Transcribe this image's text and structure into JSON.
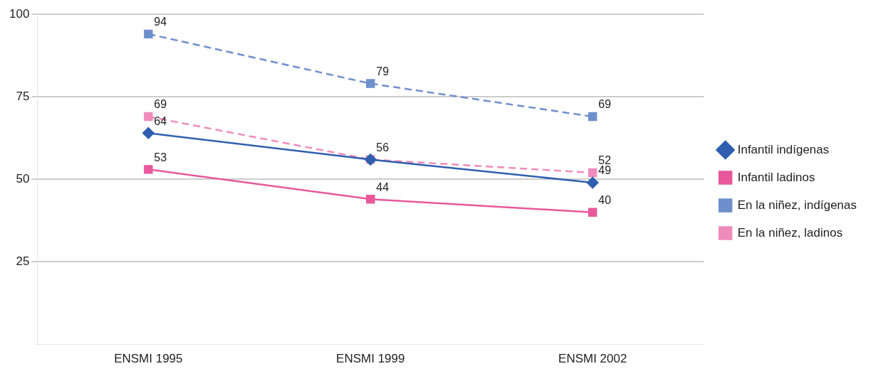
{
  "chart_data": {
    "type": "line",
    "categories": [
      "ENSMI 1995",
      "ENSMI 1999",
      "ENSMI 2002"
    ],
    "ylim": [
      0,
      100
    ],
    "yticks": [
      25,
      50,
      75,
      100
    ],
    "grid": "y",
    "legend": "right",
    "series": [
      {
        "name": "Infantil indígenas",
        "color": "#2f5fae",
        "values": [
          64,
          56,
          49
        ],
        "marker": "diamond",
        "line_style": "solid",
        "value_labels": [
          "64",
          null,
          "49"
        ]
      },
      {
        "name": "Infantil ladinos",
        "color": "#e8589b",
        "values": [
          53,
          44,
          40
        ],
        "marker": "square",
        "line_style": "solid",
        "value_labels": [
          "53",
          "44",
          "40"
        ]
      },
      {
        "name": "En la niñez, indígenas",
        "color": "#6f8fcc",
        "values": [
          94,
          79,
          69
        ],
        "marker": "square",
        "line_style": "dashed",
        "value_labels": [
          "94",
          "79",
          "69"
        ]
      },
      {
        "name": "En la niñez, ladinos",
        "color": "#f08cbb",
        "values": [
          69,
          56,
          52
        ],
        "marker": "square",
        "line_style": "dashed",
        "value_labels": [
          "69",
          "56",
          "52"
        ]
      }
    ]
  }
}
